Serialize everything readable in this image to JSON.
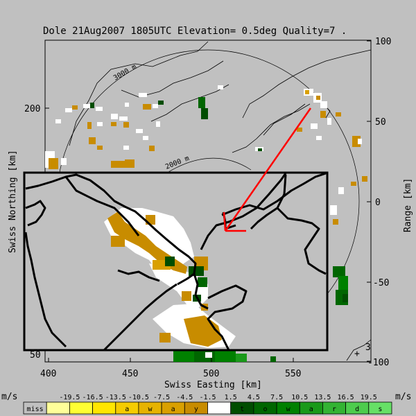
{
  "chart_data": {
    "type": "heatmap",
    "title": "Dole 21Aug2007 1805UTC Elevation= 0.5deg Quality=7 .",
    "xlabel": "Swiss Easting [km]",
    "ylabel": "Swiss Northing [km]",
    "y2label": "Range [km]",
    "x_ticks": [
      "400",
      "450",
      "500",
      "550"
    ],
    "y_ticks": [
      "200",
      "50"
    ],
    "range_ticks": [
      "100",
      "50",
      "0",
      "-50",
      "-100"
    ],
    "contour_labels": [
      "3000 m",
      "2000 m"
    ],
    "corner_mark": "+",
    "corner_digit": "3",
    "colorbar": {
      "unit_left": "m/s",
      "unit_right": "m/s",
      "tick_values": [
        "-19.5",
        "-16.5",
        "-13.5",
        "-10.5",
        "-7.5",
        "-4.5",
        "-1.5",
        "1.5",
        "4.5",
        "7.5",
        "10.5",
        "13.5",
        "16.5",
        "19.5"
      ],
      "cells": [
        {
          "label": "miss",
          "color": "#c0c0c0"
        },
        {
          "label": "",
          "color": "#ffff99"
        },
        {
          "label": "",
          "color": "#ffff33"
        },
        {
          "label": "",
          "color": "#ffe600"
        },
        {
          "label": "a",
          "color": "#f5cc00"
        },
        {
          "label": "w",
          "color": "#e6b300"
        },
        {
          "label": "a",
          "color": "#d9a000"
        },
        {
          "label": "y",
          "color": "#c88c00"
        },
        {
          "label": "",
          "color": "#ffffff"
        },
        {
          "label": "t",
          "color": "#004d00"
        },
        {
          "label": "o",
          "color": "#006600"
        },
        {
          "label": "w",
          "color": "#008000"
        },
        {
          "label": "a",
          "color": "#1a991a"
        },
        {
          "label": "r",
          "color": "#33b333"
        },
        {
          "label": "d",
          "color": "#4dcc4d"
        },
        {
          "label": "s",
          "color": "#66e066"
        }
      ]
    }
  }
}
